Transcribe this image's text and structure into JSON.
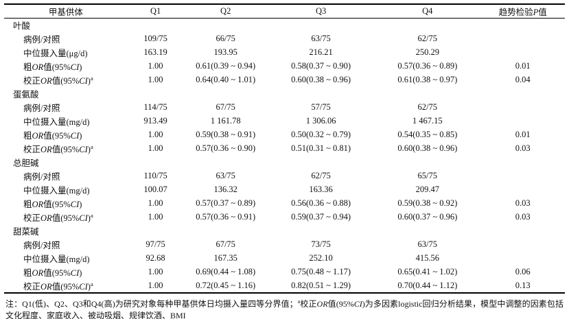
{
  "colors": {
    "background": "#ffffff",
    "text": "#111111",
    "rule_lines": "#000000"
  },
  "table": {
    "headers": [
      "甲基供体",
      "Q1",
      "Q2",
      "Q3",
      "Q4",
      "趋势检验P值"
    ],
    "groups": [
      {
        "name": "叶酸",
        "rows": [
          {
            "label": "病例/对照",
            "values": [
              "109/75",
              "66/75",
              "63/75",
              "62/75",
              ""
            ]
          },
          {
            "label": "中位摄入量(μg/d)",
            "values": [
              "163.19",
              "193.95",
              "216.21",
              "250.29",
              ""
            ]
          },
          {
            "label": "粗OR值(95%CI)",
            "values": [
              "1.00",
              "0.61(0.39 ~ 0.94)",
              "0.58(0.37 ~ 0.90)",
              "0.57(0.36 ~ 0.89)",
              "0.01"
            ]
          },
          {
            "label": "校正OR值(95%CI)ᵃ",
            "values": [
              "1.00",
              "0.64(0.40 ~ 1.01)",
              "0.60(0.38 ~ 0.96)",
              "0.61(0.38 ~ 0.97)",
              "0.04"
            ]
          }
        ]
      },
      {
        "name": "蛋氨酸",
        "rows": [
          {
            "label": "病例/对照",
            "values": [
              "114/75",
              "67/75",
              "57/75",
              "62/75",
              ""
            ]
          },
          {
            "label": "中位摄入量(mg/d)",
            "values": [
              "913.49",
              "1 161.78",
              "1 306.06",
              "1 467.15",
              ""
            ]
          },
          {
            "label": "粗OR值(95%CI)",
            "values": [
              "1.00",
              "0.59(0.38 ~ 0.91)",
              "0.50(0.32 ~ 0.79)",
              "0.54(0.35 ~ 0.85)",
              "0.01"
            ]
          },
          {
            "label": "校正OR值(95%CI)ᵃ",
            "values": [
              "1.00",
              "0.57(0.36 ~ 0.90)",
              "0.51(0.31 ~ 0.81)",
              "0.60(0.38 ~ 0.96)",
              "0.03"
            ]
          }
        ]
      },
      {
        "name": "总胆碱",
        "rows": [
          {
            "label": "病例/对照",
            "values": [
              "110/75",
              "63/75",
              "62/75",
              "65/75",
              ""
            ]
          },
          {
            "label": "中位摄入量(mg/d)",
            "values": [
              "100.07",
              "136.32",
              "163.36",
              "209.47",
              ""
            ]
          },
          {
            "label": "粗OR值(95%CI)",
            "values": [
              "1.00",
              "0.57(0.37 ~ 0.89)",
              "0.56(0.36 ~ 0.88)",
              "0.59(0.38 ~ 0.92)",
              "0.03"
            ]
          },
          {
            "label": "校正OR值(95%CI)ᵃ",
            "values": [
              "1.00",
              "0.57(0.36 ~ 0.91)",
              "0.59(0.37 ~ 0.94)",
              "0.60(0.37 ~ 0.96)",
              "0.03"
            ]
          }
        ]
      },
      {
        "name": "甜菜碱",
        "rows": [
          {
            "label": "病例/对照",
            "values": [
              "97/75",
              "67/75",
              "73/75",
              "63/75",
              ""
            ]
          },
          {
            "label": "中位摄入量(mg/d)",
            "values": [
              "92.68",
              "167.35",
              "252.10",
              "415.56",
              ""
            ]
          },
          {
            "label": "粗OR值(95%CI)",
            "values": [
              "1.00",
              "0.69(0.44 ~ 1.08)",
              "0.75(0.48 ~ 1.17)",
              "0.65(0.41 ~ 1.02)",
              "0.06"
            ]
          },
          {
            "label": "校正OR值(95%CI)ᵃ",
            "values": [
              "1.00",
              "0.72(0.45 ~ 1.16)",
              "0.82(0.51 ~ 1.29)",
              "0.70(0.44 ~ 1.12)",
              "0.13"
            ]
          }
        ]
      }
    ]
  },
  "footnote": "注：Q1(低)、Q2、Q3和Q4(高)为研究对象每种甲基供体日均摄入量四等分界值；ᵃ校正OR值(95%CI)为多因素logistic回归分析结果，模型中调整的因素包括文化程度、家庭收入、被动吸烟、规律饮酒、BMI"
}
